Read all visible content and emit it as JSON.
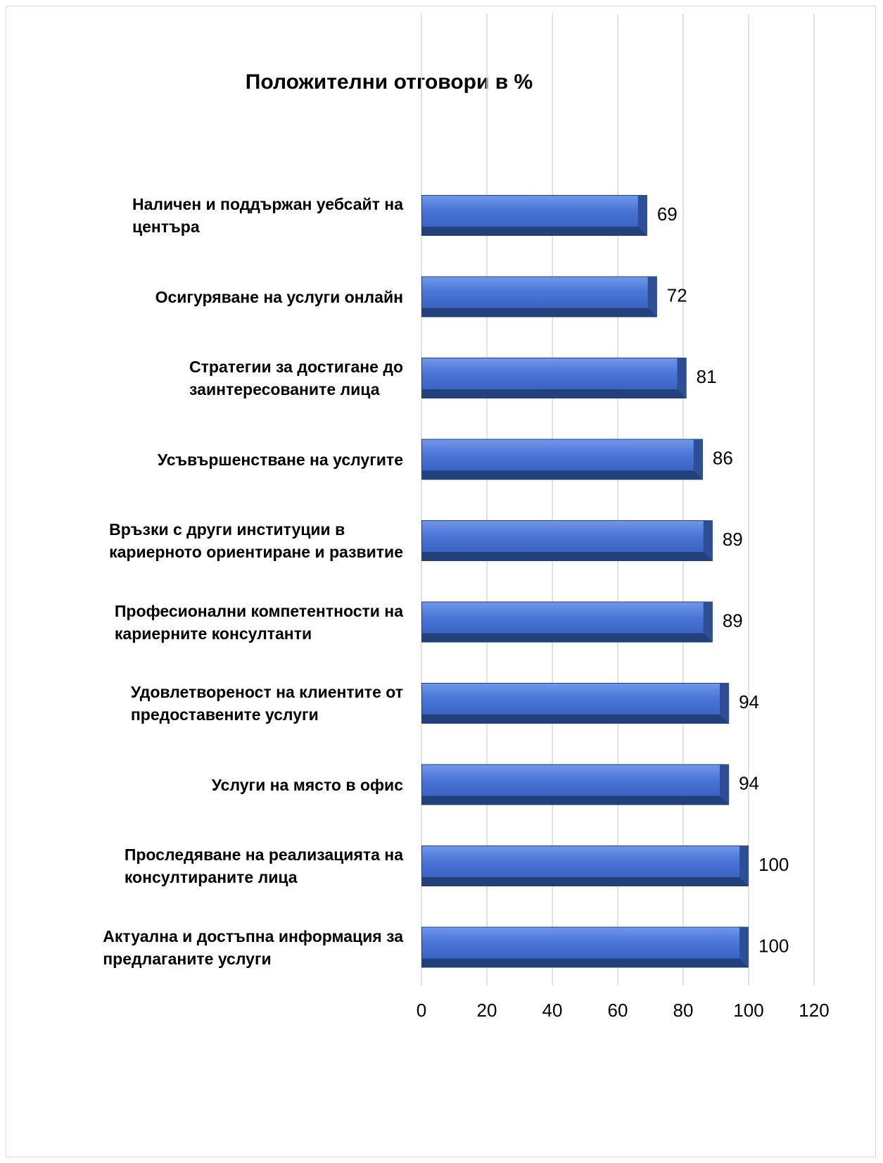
{
  "chart_data": {
    "type": "bar",
    "orientation": "horizontal",
    "title": "Положителни отговори в %",
    "categories": [
      "Наличен и поддържан уебсайт на\nцентъра",
      "Осигуряване на услуги онлайн",
      "Стратегии за достигане до\nзаинтересованите лица",
      "Усъвършенстване на услугите",
      "Връзки с други институции в\nкариерното ориентиране и развитие",
      "Професионални компетентности на\nкариерните консултанти",
      "Удовлетвореност на клиентите от\nпредоставените услуги",
      "Услуги на място в офис",
      "Проследяване на реализацията на\nконсултираните  лица",
      "Актуална и достъпна информация за\nпредлаганите услуги"
    ],
    "values": [
      69,
      72,
      81,
      86,
      89,
      89,
      94,
      94,
      100,
      100
    ],
    "color": "#4a74d6",
    "xlim": [
      0,
      120
    ],
    "xticks": [
      0,
      20,
      40,
      60,
      80,
      100,
      120
    ],
    "grid": true
  }
}
